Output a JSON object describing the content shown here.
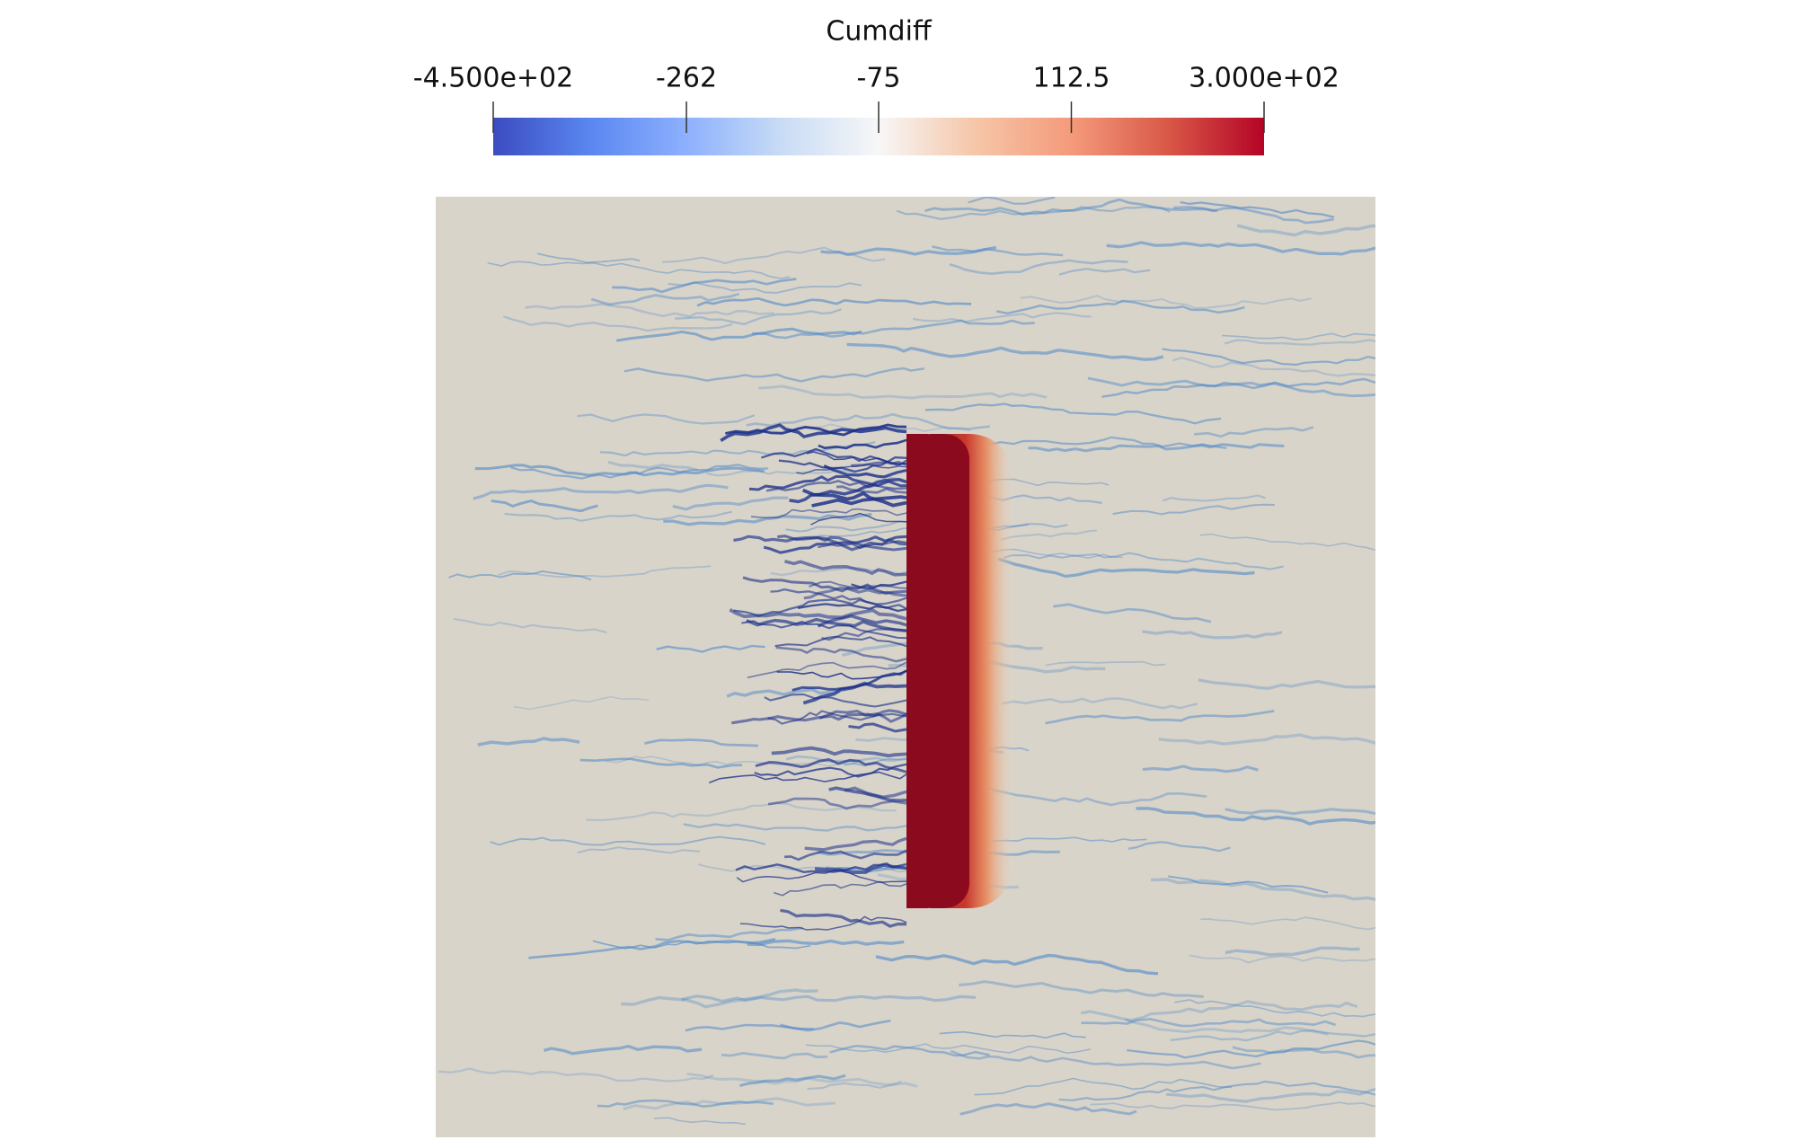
{
  "colorbar": {
    "title": "Cumdiff",
    "range": [
      -450,
      300
    ],
    "ticks": [
      {
        "value": -450,
        "label": "-4.500e+02"
      },
      -262,
      -75,
      112.5,
      {
        "value": 300,
        "label": "3.000e+02"
      }
    ],
    "colors": [
      "#3b4cc0",
      "#5a86f0",
      "#8db0fe",
      "#c9dcf5",
      "#f7f7f7",
      "#f6c6a8",
      "#f49a7b",
      "#d95847",
      "#b40426"
    ]
  }
}
